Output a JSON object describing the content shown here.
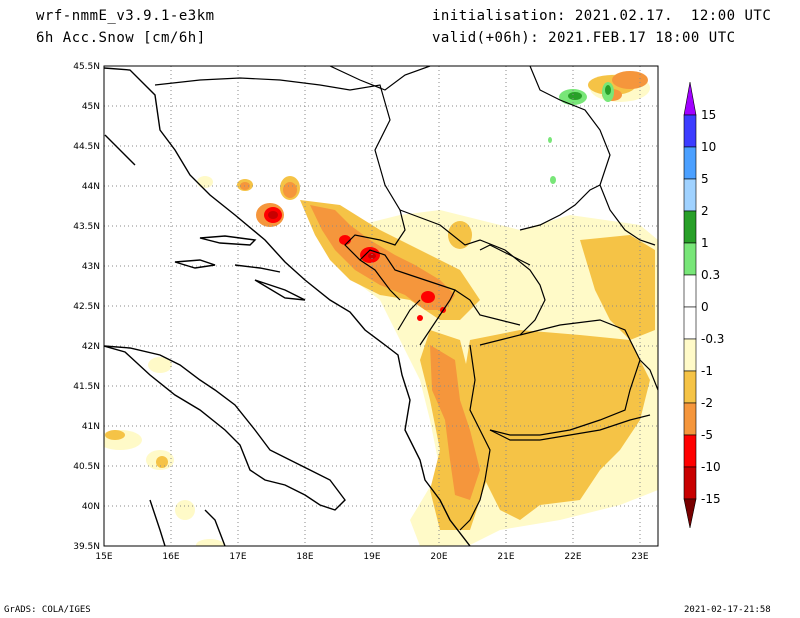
{
  "header": {
    "model": "wrf-nmmE_v3.9.1-e3km",
    "field": "6h Acc.Snow [cm/6h]",
    "init": "initialisation: 2021.02.17.  12:00 UTC",
    "valid": "valid(+06h): 2021.FEB.17 18:00 UTC"
  },
  "footer": {
    "left": "GrADS: COLA/IGES",
    "right": "2021-02-17-21:58"
  },
  "map": {
    "lat_labels": [
      "45.5N",
      "45N",
      "44.5N",
      "44N",
      "43.5N",
      "43N",
      "42.5N",
      "42N",
      "41.5N",
      "41N",
      "40.5N",
      "40N",
      "39.5N"
    ],
    "lon_labels": [
      "15E",
      "16E",
      "17E",
      "18E",
      "19E",
      "20E",
      "21E",
      "22E",
      "23E"
    ],
    "lon_range": [
      15,
      23.3
    ],
    "lat_range": [
      39.5,
      45.5
    ],
    "grid": "dotted"
  },
  "colorbar": {
    "labels": [
      "15",
      "10",
      "5",
      "2",
      "1",
      "0.3",
      "0",
      "-0.3",
      "-1",
      "-2",
      "-5",
      "-10",
      "-15"
    ],
    "colors": [
      "#a000ff",
      "#3c3cff",
      "#4ba0ff",
      "#a0d2ff",
      "#28a028",
      "#78e678",
      "#ffffff",
      "#ffffff",
      "#fffac8",
      "#f5c346",
      "#f5963c",
      "#ff0000",
      "#c80000",
      "#a00000",
      "#780000"
    ]
  },
  "legend_icons": {
    "top": "triangle-up",
    "bottom": "triangle-down"
  }
}
